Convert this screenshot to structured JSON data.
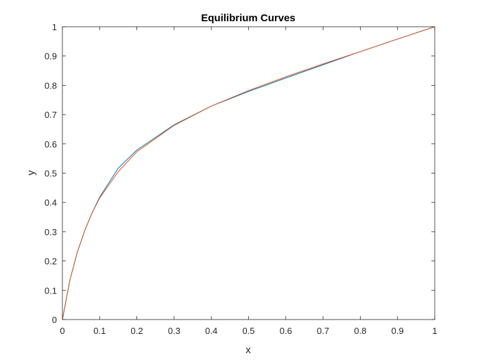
{
  "chart_data": {
    "type": "line",
    "title": "Equilibrium Curves",
    "xlabel": "x",
    "ylabel": "y",
    "xlim": [
      0,
      1
    ],
    "ylim": [
      0,
      1
    ],
    "xticks": [
      "0",
      "0.1",
      "0.2",
      "0.3",
      "0.4",
      "0.5",
      "0.6",
      "0.7",
      "0.8",
      "0.9",
      "1"
    ],
    "yticks": [
      "0",
      "0.1",
      "0.2",
      "0.3",
      "0.4",
      "0.5",
      "0.6",
      "0.7",
      "0.8",
      "0.9",
      "1"
    ],
    "grid": false,
    "series": [
      {
        "color": "#0072BD",
        "x": [
          0,
          0.02,
          0.04,
          0.06,
          0.08,
          0.1,
          0.15,
          0.2,
          0.3,
          0.4,
          0.5,
          0.6,
          0.7,
          0.8,
          0.9,
          1.0
        ],
        "y": [
          0,
          0.134,
          0.23,
          0.304,
          0.365,
          0.418,
          0.517,
          0.579,
          0.665,
          0.729,
          0.779,
          0.825,
          0.87,
          0.915,
          0.958,
          1.0
        ]
      },
      {
        "color": "#D95319",
        "x": [
          0,
          0.02,
          0.04,
          0.06,
          0.08,
          0.1,
          0.15,
          0.2,
          0.3,
          0.4,
          0.5,
          0.6,
          0.7,
          0.8,
          0.9,
          1.0
        ],
        "y": [
          0,
          0.134,
          0.23,
          0.304,
          0.365,
          0.415,
          0.505,
          0.573,
          0.663,
          0.729,
          0.782,
          0.829,
          0.873,
          0.915,
          0.958,
          1.0
        ]
      }
    ]
  }
}
